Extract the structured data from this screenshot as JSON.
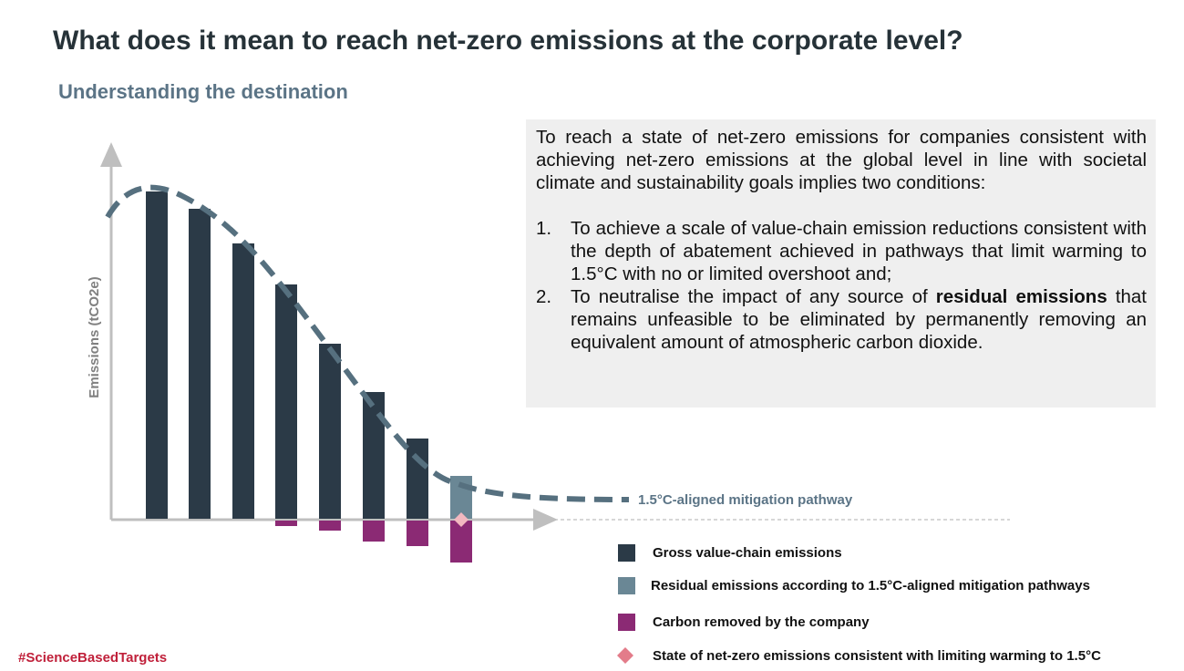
{
  "header": {
    "title": "What does it mean to reach net-zero emissions at the corporate level?",
    "subtitle": "Understanding the destination"
  },
  "diagram": {
    "y_axis_label": "Emissions (tCO2e)",
    "pathway_label": "1.5°C-aligned mitigation pathway"
  },
  "textbox": {
    "intro": "To reach a state of net-zero emissions for companies consistent with achieving net-zero emissions at the global level in line with societal climate and sustainability goals implies two conditions:",
    "items": [
      {
        "marker": "1.",
        "text": "To achieve a scale of value-chain emission reductions consistent with the depth of abatement achieved in pathways that limit warming to 1.5°C with no or limited overshoot and;"
      },
      {
        "marker": "2.",
        "before": "To neutralise the impact of any source of",
        "bold": "residual emissions",
        "after": "that remains unfeasible to be eliminated by permanently removing an equivalent amount of atmospheric carbon dioxide."
      }
    ]
  },
  "legend": [
    "Gross value-chain emissions",
    "Residual emissions according to 1.5°C-aligned mitigation pathways",
    "Carbon removed by the company",
    "State of net-zero emissions consistent with limiting warming to 1.5°C"
  ],
  "footer": {
    "hashtag": "#ScienceBasedTargets"
  }
}
